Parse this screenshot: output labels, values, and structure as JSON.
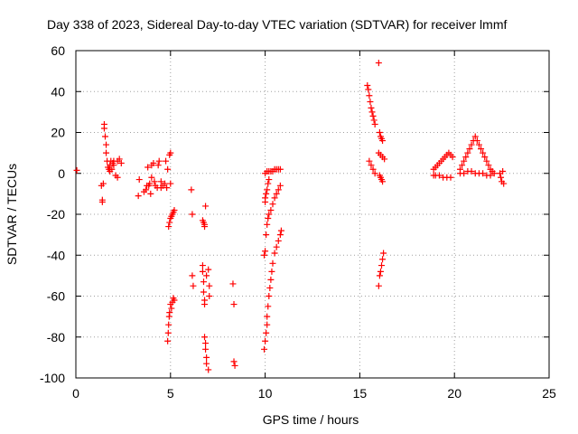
{
  "chart_data": {
    "type": "scatter",
    "title": "Day 338 of 2023, Sidereal Day-to-day VTEC variation (SDTVAR) for receiver lmmf",
    "xlabel": "GPS time / hours",
    "ylabel": "SDTVAR / TECUs",
    "xlim": [
      0,
      25
    ],
    "ylim": [
      -100,
      60
    ],
    "xticks": [
      0,
      5,
      10,
      15,
      20,
      25
    ],
    "yticks": [
      -100,
      -80,
      -60,
      -40,
      -20,
      0,
      20,
      40,
      60
    ],
    "grid": true,
    "marker": "+",
    "marker_color": "#ff0000",
    "series": [
      {
        "name": "SDTVAR",
        "x": [
          0.05,
          1.35,
          1.4,
          1.4,
          1.45,
          1.5,
          1.5,
          1.55,
          1.6,
          1.6,
          1.65,
          1.7,
          1.75,
          1.8,
          1.8,
          1.85,
          1.9,
          1.95,
          2.0,
          2.0,
          2.1,
          2.2,
          2.2,
          2.3,
          2.4,
          3.3,
          3.35,
          3.6,
          3.7,
          3.75,
          3.8,
          3.85,
          3.9,
          3.95,
          4.0,
          4.0,
          4.1,
          4.15,
          4.2,
          4.3,
          4.35,
          4.4,
          4.5,
          4.5,
          4.6,
          4.7,
          4.75,
          4.8,
          4.85,
          4.95,
          5.0,
          5.0,
          4.9,
          4.95,
          5.0,
          5.05,
          5.1,
          5.15,
          5.2,
          4.85,
          4.88,
          4.9,
          4.93,
          4.95,
          5.0,
          5.05,
          5.1,
          5.15,
          5.2,
          6.1,
          6.15,
          6.15,
          6.2,
          6.7,
          6.7,
          6.75,
          6.75,
          6.8,
          6.8,
          6.8,
          6.85,
          6.85,
          6.9,
          6.9,
          7.0,
          7.0,
          7.05,
          7.05,
          6.7,
          6.75,
          6.8,
          6.8,
          6.85,
          6.9,
          8.3,
          8.35,
          8.35,
          8.4,
          9.95,
          10.0,
          10.05,
          10.1,
          10.1,
          10.15,
          10.2,
          10.25,
          10.3,
          10.35,
          10.4,
          10.5,
          10.6,
          10.7,
          10.8,
          10.85,
          9.95,
          10.0,
          10.05,
          10.1,
          10.15,
          10.2,
          10.3,
          10.4,
          10.5,
          10.6,
          10.7,
          10.8,
          10.0,
          10.0,
          10.05,
          10.1,
          10.15,
          10.2,
          10.0,
          10.1,
          10.2,
          10.3,
          10.4,
          10.5,
          10.6,
          10.7,
          10.8,
          15.4,
          15.45,
          15.5,
          15.55,
          15.6,
          15.65,
          15.7,
          15.75,
          15.8,
          15.5,
          15.6,
          15.7,
          15.8,
          16.0,
          16.05,
          16.1,
          16.15,
          16.2,
          16.0,
          16.1,
          16.2,
          16.3,
          16.05,
          16.1,
          16.15,
          16.2,
          16.0,
          16.05,
          16.1,
          16.15,
          16.2,
          16.25,
          18.9,
          19.0,
          19.1,
          19.2,
          19.3,
          19.4,
          19.5,
          19.6,
          19.7,
          19.8,
          19.9,
          18.9,
          19.0,
          19.2,
          19.4,
          19.6,
          19.8,
          20.3,
          20.4,
          20.5,
          20.6,
          20.7,
          20.8,
          20.9,
          21.0,
          21.1,
          21.2,
          21.3,
          21.4,
          21.5,
          21.6,
          21.7,
          21.8,
          21.9,
          22.0,
          20.3,
          20.5,
          20.7,
          20.9,
          21.1,
          21.3,
          21.5,
          21.7,
          21.9,
          22.1,
          22.4,
          22.45,
          22.5,
          22.55,
          22.6
        ],
        "y": [
          1.5,
          -6,
          -13,
          -14,
          -5,
          22,
          24,
          18,
          14,
          10,
          6,
          3,
          2,
          1,
          4,
          6,
          2,
          5,
          6,
          4,
          -1,
          6,
          -2,
          7,
          5,
          -11,
          -3,
          -9,
          -8,
          -6,
          3,
          -6,
          -5,
          -10,
          -2,
          4,
          5,
          -4,
          -6,
          -7,
          4,
          6,
          -7,
          -4,
          -6,
          -5,
          6,
          -7,
          2,
          9,
          10,
          -5,
          -26,
          -24,
          -22,
          -21,
          -20,
          -19,
          -18,
          -82,
          -78,
          -74,
          -70,
          -68,
          -64,
          -66,
          -63,
          -61,
          -62,
          -8,
          -20,
          -50,
          -55,
          -45,
          -48,
          -53,
          -58,
          -62,
          -64,
          -80,
          -83,
          -86,
          -90,
          -93,
          -96,
          -47,
          -55,
          -60,
          -23,
          -24,
          -25,
          -26,
          -16,
          -50,
          -54,
          -64,
          -92,
          -94,
          -86,
          -82,
          -78,
          -74,
          -70,
          -65,
          -60,
          -56,
          -52,
          -48,
          -44,
          -39,
          -36,
          -33,
          -30,
          -28,
          -40,
          -38,
          -30,
          -25,
          -22,
          -20,
          -18,
          -15,
          -12,
          -10,
          -8,
          -6,
          -14,
          -12,
          -10,
          -8,
          -5,
          -3,
          0,
          1,
          1,
          1,
          1,
          2,
          2,
          2,
          2,
          43,
          41,
          38,
          35,
          32,
          30,
          28,
          26,
          24,
          6,
          4,
          2,
          0,
          54,
          20,
          18,
          17,
          16,
          10,
          9,
          8,
          7,
          -1,
          -2,
          -3,
          -4,
          -55,
          -50,
          -48,
          -45,
          -42,
          -39,
          2,
          3,
          4,
          5,
          6,
          7,
          8,
          9,
          10,
          9,
          8,
          -1,
          -1,
          -1,
          -2,
          -2,
          -2,
          2,
          4,
          6,
          8,
          10,
          12,
          14,
          16,
          18,
          16,
          14,
          12,
          10,
          8,
          6,
          4,
          2,
          1,
          0,
          0,
          1,
          1,
          0,
          0,
          0,
          -1,
          -1,
          0,
          0,
          -2,
          -4,
          1,
          -5
        ]
      }
    ]
  }
}
